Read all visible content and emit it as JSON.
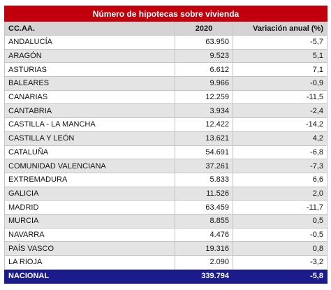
{
  "table": {
    "title": "Número de hipotecas sobre vivienda",
    "header": [
      "CC.AA.",
      "2020",
      "Variación anual (%)"
    ],
    "rows": [
      [
        "ANDALUCÍA",
        "63.950",
        "-5,7"
      ],
      [
        "ARAGÓN",
        "9.523",
        "5,1"
      ],
      [
        "ASTURIAS",
        "6.612",
        "7,1"
      ],
      [
        "BALEARES",
        "9.966",
        "-0,9"
      ],
      [
        "CANARIAS",
        "12.259",
        "-11,5"
      ],
      [
        "CANTABRIA",
        "3.934",
        "-2,4"
      ],
      [
        "CASTILLA - LA MANCHA",
        "12.422",
        "-14,2"
      ],
      [
        "CASTILLA Y LEÓN",
        "13.621",
        "4,2"
      ],
      [
        "CATALUÑA",
        "54.691",
        "-6,8"
      ],
      [
        "COMUNIDAD VALENCIANA",
        "37.261",
        "-7,3"
      ],
      [
        "EXTREMADURA",
        "5.833",
        "6,6"
      ],
      [
        "GALICIA",
        "11.526",
        "2,0"
      ],
      [
        "MADRID",
        "63.459",
        "-11,7"
      ],
      [
        "MURCIA",
        "8.855",
        "0,5"
      ],
      [
        "NAVARRA",
        "4.476",
        "-0,5"
      ],
      [
        "PAÍS VASCO",
        "19.316",
        "0,8"
      ],
      [
        "LA RIOJA",
        "2.090",
        "-3,2"
      ]
    ],
    "total": [
      "NACIONAL",
      "339.794",
      "-5,8"
    ]
  }
}
